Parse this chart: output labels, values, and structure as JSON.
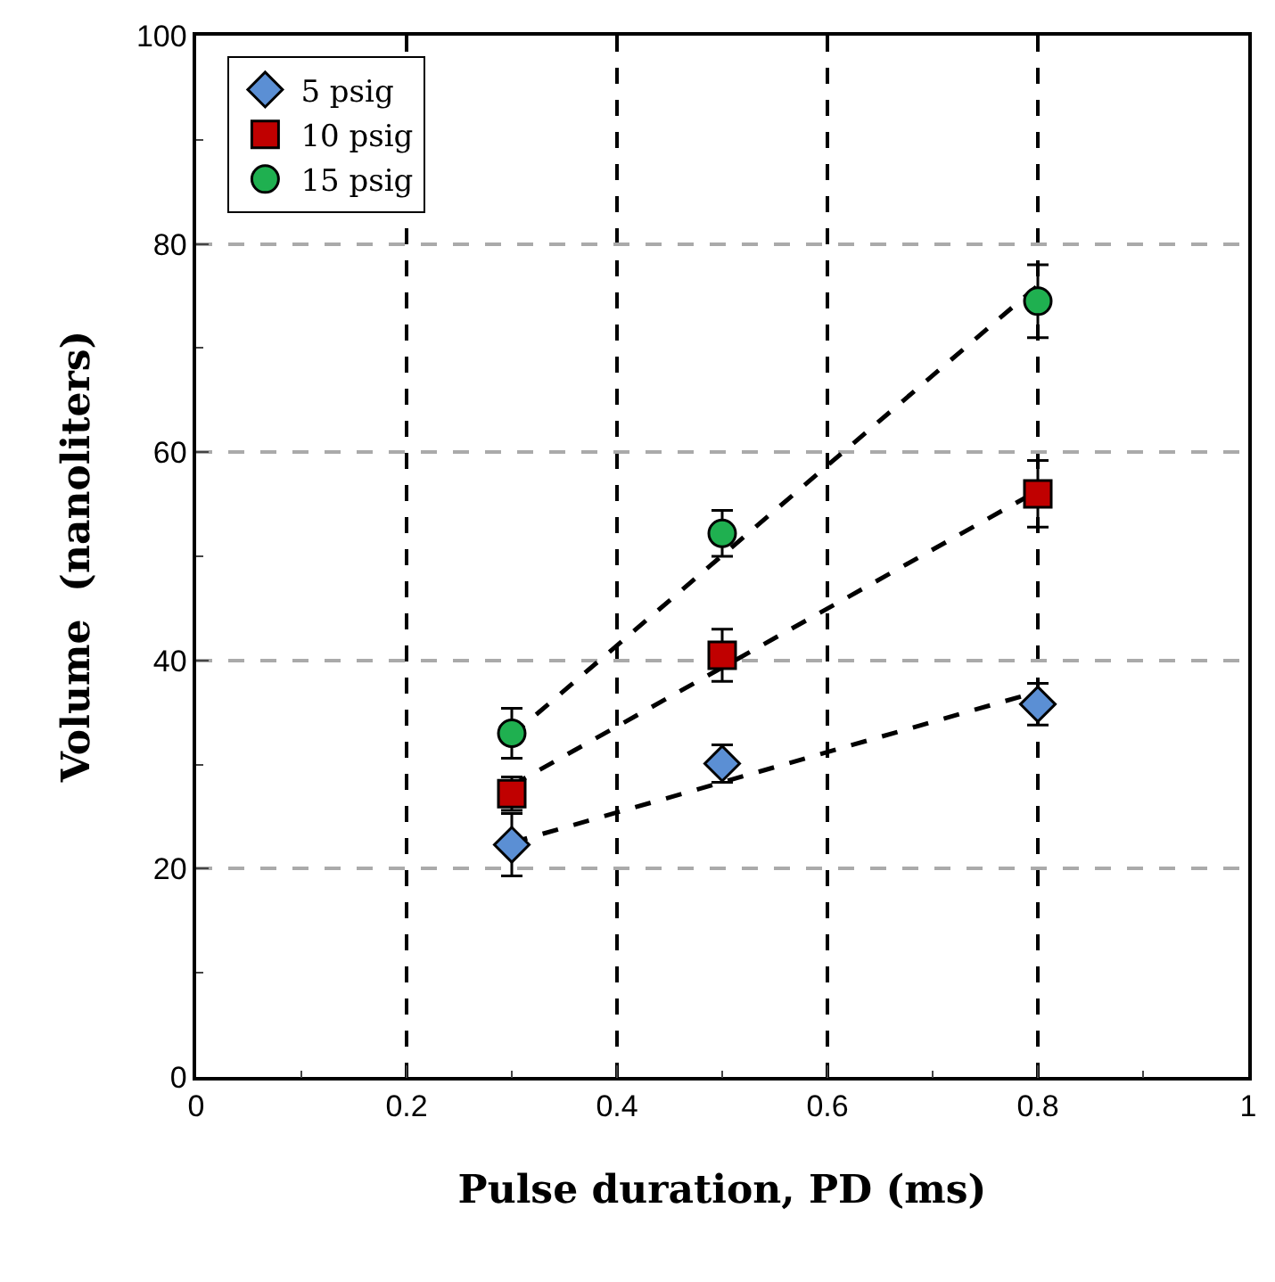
{
  "chart_data": {
    "type": "scatter",
    "xlabel": "Pulse duration, PD (ms)",
    "ylabel": "Volume  (nanoliters)",
    "xlim": [
      0,
      1
    ],
    "xticks": [
      0,
      0.2,
      0.4,
      0.6,
      0.8,
      1
    ],
    "ylim": [
      0,
      100
    ],
    "yticks": [
      0,
      20,
      40,
      60,
      80,
      100
    ],
    "grid": true,
    "legend": "top left",
    "series": [
      {
        "name": "5 psig",
        "color": "#5b8fd4",
        "marker": "diamond",
        "x": [
          0.3,
          0.5,
          0.8
        ],
        "values": [
          22.3,
          30.1,
          35.8
        ],
        "errors": [
          3,
          1.8,
          2
        ]
      },
      {
        "name": "10 psig",
        "color": "#c00000",
        "marker": "square",
        "x": [
          0.3,
          0.5,
          0.8
        ],
        "values": [
          27.2,
          40.5,
          56
        ],
        "errors": [
          1.6,
          2.5,
          3.2
        ]
      },
      {
        "name": "15 psig",
        "color": "#1fb050",
        "marker": "circle",
        "x": [
          0.3,
          0.5,
          0.8
        ],
        "values": [
          33,
          52.2,
          74.5
        ],
        "errors": [
          2.4,
          2.2,
          3.5
        ]
      },
      {
        "type": "line",
        "color": "#000000",
        "line_style": "dashed",
        "marker": "none",
        "x": [
          0.3,
          0.8
        ],
        "values": [
          22.5,
          37
        ]
      },
      {
        "type": "line",
        "color": "#000000",
        "line_style": "dashed",
        "marker": "none",
        "x": [
          0.3,
          0.8
        ],
        "values": [
          28,
          56.3
        ]
      },
      {
        "type": "line",
        "color": "#000000",
        "line_style": "dashed",
        "marker": "none",
        "x": [
          0.3,
          0.8
        ],
        "values": [
          32.8,
          76
        ]
      }
    ]
  }
}
